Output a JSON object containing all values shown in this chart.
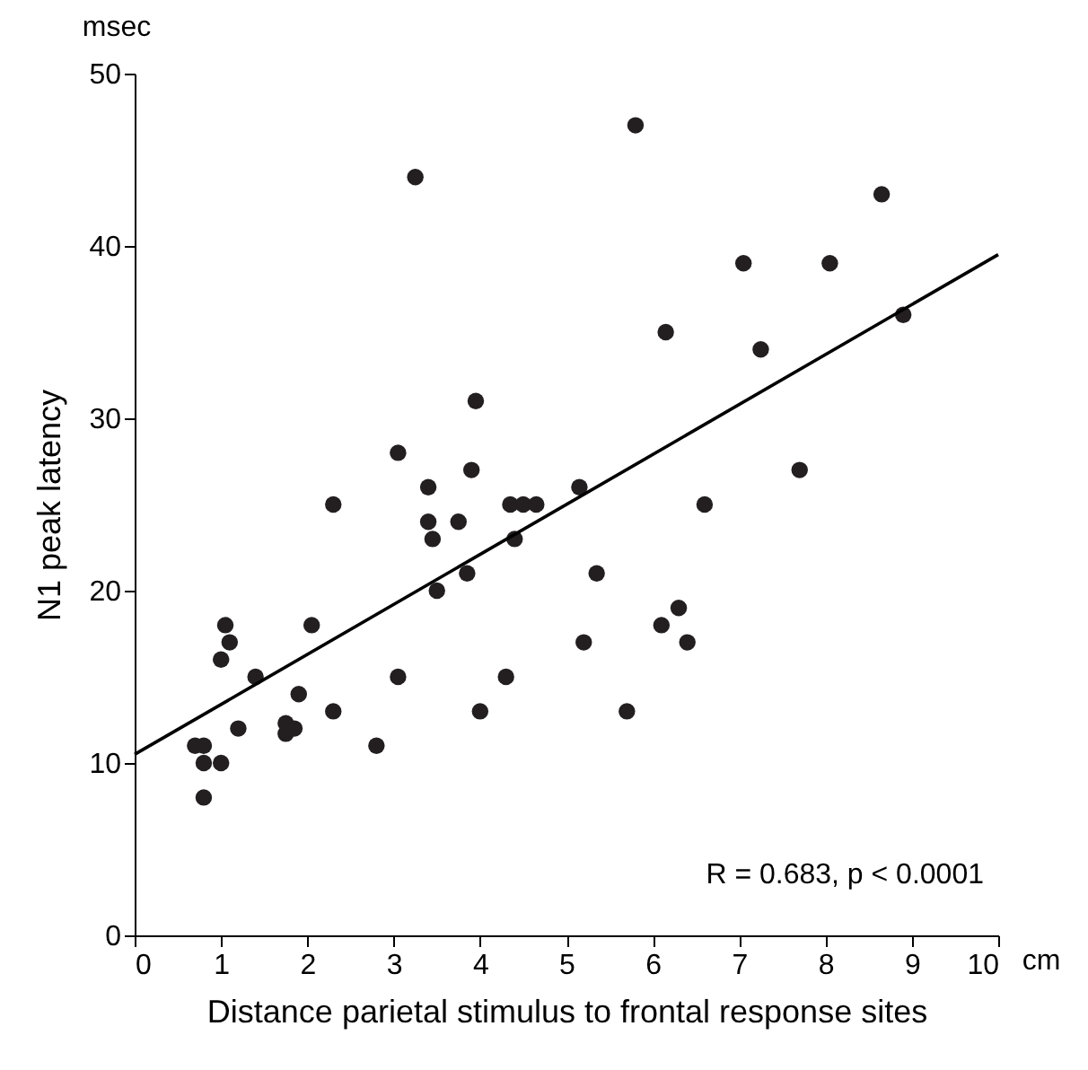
{
  "chart_data": {
    "type": "scatter",
    "xlabel": "Distance parietal stimulus to frontal response sites",
    "ylabel": "N1 peak latency",
    "annotations": [
      "msec",
      "cm",
      "R = 0.683, p < 0.0001"
    ],
    "xlim": [
      0,
      10
    ],
    "xticks": [
      0,
      1,
      2,
      3,
      4,
      5,
      6,
      7,
      8,
      9,
      10
    ],
    "ylim": [
      0,
      50
    ],
    "yticks": [
      0,
      10,
      20,
      30,
      40,
      50
    ],
    "grid": false,
    "series": [
      {
        "color": "#231f20",
        "marker": "circle",
        "x": [
          0.7,
          0.8,
          0.8,
          0.8,
          1.0,
          1.0,
          1.05,
          1.1,
          1.2,
          1.4,
          1.75,
          1.75,
          1.85,
          1.9,
          2.05,
          2.3,
          2.3,
          2.8,
          3.05,
          3.05,
          3.25,
          3.4,
          3.4,
          3.45,
          3.5,
          3.75,
          3.85,
          3.9,
          3.95,
          4.0,
          4.3,
          4.35,
          4.4,
          4.5,
          4.65,
          5.15,
          5.2,
          5.35,
          5.7,
          5.8,
          6.1,
          6.15,
          6.3,
          6.4,
          6.6,
          7.05,
          7.25,
          7.7,
          8.05,
          8.65,
          8.9
        ],
        "values": [
          11,
          11,
          10,
          8,
          16,
          10,
          18,
          17,
          12,
          15,
          12.3,
          11.7,
          12,
          14,
          18,
          13,
          25,
          11,
          28,
          15,
          44,
          26,
          24,
          23,
          20,
          24,
          21,
          27,
          31,
          13,
          15,
          25,
          23,
          25,
          25,
          26,
          17,
          21,
          13,
          47,
          18,
          35,
          19,
          17,
          25,
          39,
          34,
          27,
          39,
          43,
          36
        ]
      },
      {
        "type": "line",
        "color": "#000000",
        "line_style": "solid",
        "x": [
          0,
          10
        ],
        "values": [
          10.5,
          39.5
        ]
      }
    ]
  }
}
